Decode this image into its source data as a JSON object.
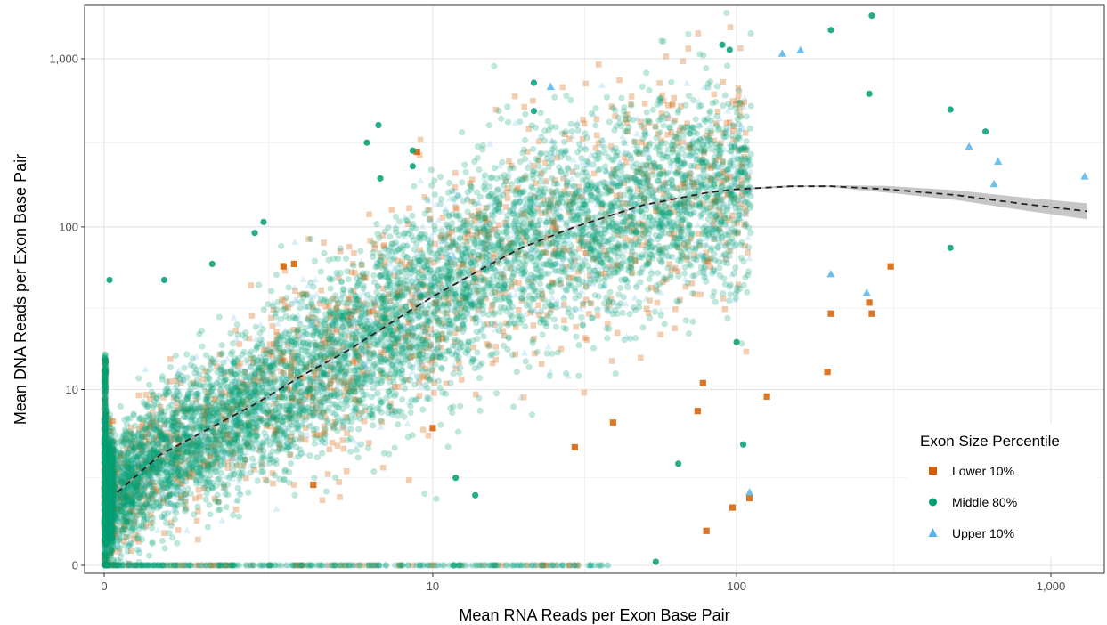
{
  "chart_data": {
    "type": "scatter",
    "xlabel": "Mean RNA Reads per Exon Base Pair",
    "ylabel": "Mean DNA Reads per Exon Base Pair",
    "x_scale": "pseudo-log",
    "y_scale": "pseudo-log",
    "xlim": [
      0,
      1400
    ],
    "ylim": [
      0,
      1900
    ],
    "x_ticks": [
      {
        "value": 0,
        "label": "0"
      },
      {
        "value": 10,
        "label": "10"
      },
      {
        "value": 100,
        "label": "100"
      },
      {
        "value": 1000,
        "label": "1,000"
      }
    ],
    "y_ticks": [
      {
        "value": 0,
        "label": "0"
      },
      {
        "value": 10,
        "label": "10"
      },
      {
        "value": 100,
        "label": "100"
      },
      {
        "value": 1000,
        "label": "1,000"
      }
    ],
    "grid": true,
    "legend": {
      "title": "Exon Size Percentile",
      "position": "bottom-right",
      "entries": [
        {
          "label": "Lower 10%",
          "shape": "square",
          "color": "#d55e00"
        },
        {
          "label": "Middle 80%",
          "shape": "circle",
          "color": "#009e73"
        },
        {
          "label": "Upper 10%",
          "shape": "triangle",
          "color": "#56b4e9"
        }
      ]
    },
    "trend": {
      "style": "dashed",
      "color": "#222222",
      "ribbon_color": "#b3b3b3",
      "points": [
        [
          0.1,
          1.7
        ],
        [
          0.5,
          3.5
        ],
        [
          1,
          5
        ],
        [
          2,
          8
        ],
        [
          3.3,
          12.5
        ],
        [
          5,
          18
        ],
        [
          8,
          30
        ],
        [
          10,
          38
        ],
        [
          15,
          57
        ],
        [
          20,
          75
        ],
        [
          30,
          100
        ],
        [
          50,
          135
        ],
        [
          80,
          160
        ],
        [
          100,
          168
        ],
        [
          150,
          175
        ],
        [
          200,
          175
        ],
        [
          300,
          168
        ],
        [
          500,
          155
        ],
        [
          800,
          138
        ],
        [
          1300,
          124
        ]
      ]
    },
    "series": [
      {
        "name": "Lower 10%",
        "shape": "square",
        "color": "#d55e00",
        "outliers": [
          [
            3.6,
            2
          ],
          [
            2.7,
            58
          ],
          [
            3,
            60
          ],
          [
            8.8,
            280
          ],
          [
            125,
            9
          ],
          [
            195,
            13
          ],
          [
            78,
            11
          ],
          [
            75,
            7.2
          ],
          [
            97,
            1.2
          ],
          [
            110,
            1.5
          ],
          [
            80,
            0.6
          ],
          [
            310,
            58
          ],
          [
            265,
            35
          ],
          [
            270,
            30
          ],
          [
            200,
            30
          ],
          [
            40,
            6
          ],
          [
            10,
            5.5
          ],
          [
            30,
            4
          ]
        ]
      },
      {
        "name": "Middle 80%",
        "shape": "circle",
        "color": "#009e73",
        "outliers": [
          [
            0.04,
            48
          ],
          [
            0.55,
            48
          ],
          [
            1.2,
            60
          ],
          [
            2,
            92
          ],
          [
            2.2,
            107
          ],
          [
            5.8,
            318
          ],
          [
            6.4,
            404
          ],
          [
            6.5,
            195
          ],
          [
            8.5,
            285
          ],
          [
            8.5,
            230
          ],
          [
            22,
            720
          ],
          [
            22,
            490
          ],
          [
            90,
            1210
          ],
          [
            95,
            1130
          ],
          [
            200,
            1480
          ],
          [
            270,
            1800
          ],
          [
            265,
            620
          ],
          [
            480,
            500
          ],
          [
            620,
            370
          ],
          [
            480,
            75
          ],
          [
            105,
            4.2
          ],
          [
            100,
            20
          ],
          [
            65,
            3
          ],
          [
            55,
            0.05
          ],
          [
            12,
            2.3
          ],
          [
            14,
            1.6
          ]
        ]
      },
      {
        "name": "Upper 10%",
        "shape": "triangle",
        "color": "#56b4e9",
        "outliers": [
          [
            25,
            680
          ],
          [
            110,
            1.7
          ],
          [
            140,
            1070
          ],
          [
            160,
            1120
          ],
          [
            200,
            52
          ],
          [
            260,
            40
          ],
          [
            680,
            245
          ],
          [
            660,
            180
          ],
          [
            1280,
            200
          ],
          [
            550,
            300
          ]
        ]
      }
    ]
  }
}
